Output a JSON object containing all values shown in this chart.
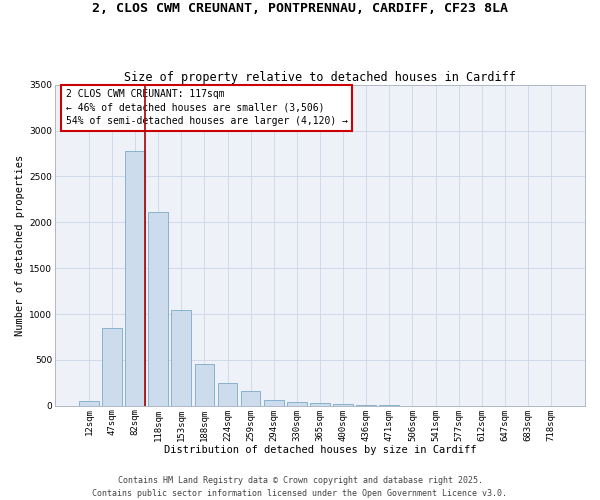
{
  "title_line1": "2, CLOS CWM CREUNANT, PONTPRENNAU, CARDIFF, CF23 8LA",
  "title_line2": "Size of property relative to detached houses in Cardiff",
  "xlabel": "Distribution of detached houses by size in Cardiff",
  "ylabel": "Number of detached properties",
  "categories": [
    "12sqm",
    "47sqm",
    "82sqm",
    "118sqm",
    "153sqm",
    "188sqm",
    "224sqm",
    "259sqm",
    "294sqm",
    "330sqm",
    "365sqm",
    "400sqm",
    "436sqm",
    "471sqm",
    "506sqm",
    "541sqm",
    "577sqm",
    "612sqm",
    "647sqm",
    "683sqm",
    "718sqm"
  ],
  "values": [
    55,
    850,
    2780,
    2110,
    1040,
    460,
    250,
    160,
    60,
    40,
    30,
    15,
    8,
    5,
    3,
    2,
    1,
    1,
    0,
    0,
    0
  ],
  "bar_color": "#ccdcec",
  "bar_edge_color": "#7aaac8",
  "grid_color": "#d0daea",
  "background_color": "#eef2f8",
  "vline_color": "#aa0000",
  "annotation_text": "2 CLOS CWM CREUNANT: 117sqm\n← 46% of detached houses are smaller (3,506)\n54% of semi-detached houses are larger (4,120) →",
  "annotation_box_color": "#cc0000",
  "ylim": [
    0,
    3500
  ],
  "yticks": [
    0,
    500,
    1000,
    1500,
    2000,
    2500,
    3000,
    3500
  ],
  "footer_line1": "Contains HM Land Registry data © Crown copyright and database right 2025.",
  "footer_line2": "Contains public sector information licensed under the Open Government Licence v3.0.",
  "title_fontsize": 9.5,
  "subtitle_fontsize": 8.5,
  "axis_label_fontsize": 7.5,
  "tick_fontsize": 6.5,
  "annotation_fontsize": 7,
  "footer_fontsize": 6
}
